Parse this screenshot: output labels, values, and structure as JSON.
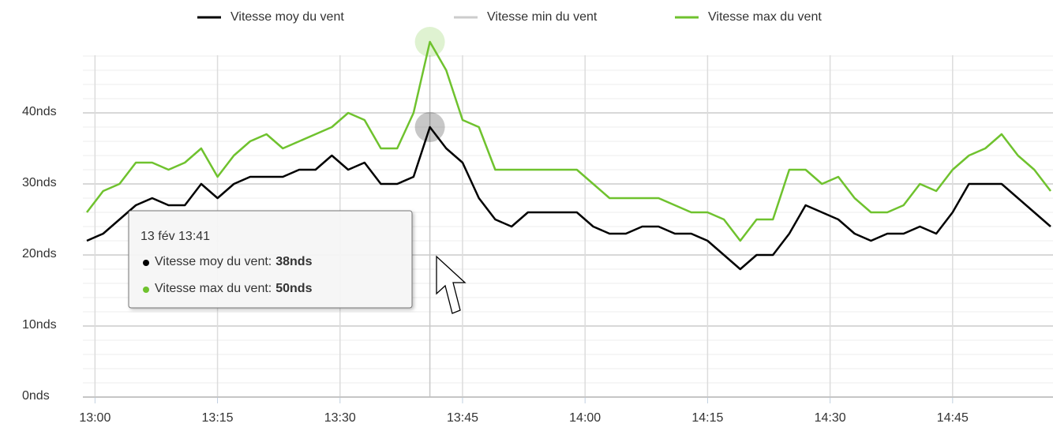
{
  "chart_data": {
    "type": "line",
    "x": [
      "12:59",
      "13:01",
      "13:03",
      "13:05",
      "13:07",
      "13:09",
      "13:11",
      "13:13",
      "13:15",
      "13:17",
      "13:19",
      "13:21",
      "13:23",
      "13:25",
      "13:27",
      "13:29",
      "13:31",
      "13:33",
      "13:35",
      "13:37",
      "13:39",
      "13:41",
      "13:43",
      "13:45",
      "13:47",
      "13:49",
      "13:51",
      "13:53",
      "13:55",
      "13:57",
      "13:59",
      "14:01",
      "14:03",
      "14:05",
      "14:07",
      "14:09",
      "14:11",
      "14:13",
      "14:15",
      "14:17",
      "14:19",
      "14:21",
      "14:23",
      "14:25",
      "14:27",
      "14:29",
      "14:31",
      "14:33",
      "14:35",
      "14:37",
      "14:39",
      "14:41",
      "14:43",
      "14:45",
      "14:47",
      "14:49",
      "14:51",
      "14:53",
      "14:55",
      "14:57"
    ],
    "series": [
      {
        "name": "Vitesse moy du vent",
        "color": "#000000",
        "visible": true,
        "values": [
          22,
          23,
          25,
          27,
          28,
          27,
          27,
          30,
          28,
          30,
          31,
          31,
          31,
          32,
          32,
          34,
          32,
          33,
          30,
          30,
          31,
          38,
          35,
          33,
          28,
          25,
          24,
          26,
          26,
          26,
          26,
          24,
          23,
          23,
          24,
          24,
          23,
          23,
          22,
          20,
          18,
          20,
          20,
          23,
          27,
          26,
          25,
          23,
          22,
          23,
          23,
          24,
          23,
          26,
          30,
          30,
          30,
          28,
          26,
          24
        ]
      },
      {
        "name": "Vitesse min du vent",
        "color": "#cccccc",
        "visible": false
      },
      {
        "name": "Vitesse max du vent",
        "color": "#6fc22e",
        "visible": true,
        "values": [
          26,
          29,
          30,
          33,
          33,
          32,
          33,
          35,
          31,
          34,
          36,
          37,
          35,
          36,
          37,
          38,
          40,
          39,
          35,
          35,
          40,
          50,
          46,
          39,
          38,
          32,
          32,
          32,
          32,
          32,
          32,
          30,
          28,
          28,
          28,
          28,
          27,
          26,
          26,
          25,
          22,
          25,
          25,
          32,
          32,
          30,
          31,
          28,
          26,
          26,
          27,
          30,
          29,
          32,
          34,
          35,
          37,
          34,
          32,
          29
        ]
      }
    ],
    "xlim": [
      "12:59",
      "14:57"
    ],
    "xticks": [
      "13:00",
      "13:15",
      "13:30",
      "13:45",
      "14:00",
      "14:15",
      "14:30",
      "14:45"
    ],
    "ylim": [
      0,
      50
    ],
    "yticks": [
      {
        "value": 0,
        "label": "0nds"
      },
      {
        "value": 10,
        "label": "10nds"
      },
      {
        "value": 20,
        "label": "20nds"
      },
      {
        "value": 30,
        "label": "30nds"
      },
      {
        "value": 40,
        "label": "40nds"
      }
    ],
    "yminorticks": [
      2,
      4,
      6,
      8,
      12,
      14,
      16,
      18,
      22,
      24,
      26,
      28,
      32,
      34,
      36,
      38,
      42,
      44,
      46,
      48
    ],
    "grid": true,
    "legend": "top",
    "tooltip": {
      "header": "13 fév 13:41",
      "index": 21,
      "rows": [
        {
          "label": "Vitesse moy du vent:",
          "value": 38,
          "value_label": "38nds",
          "color": "#000000"
        },
        {
          "label": "Vitesse max du vent:",
          "value": 50,
          "value_label": "50nds",
          "color": "#6fc22e"
        }
      ]
    }
  }
}
